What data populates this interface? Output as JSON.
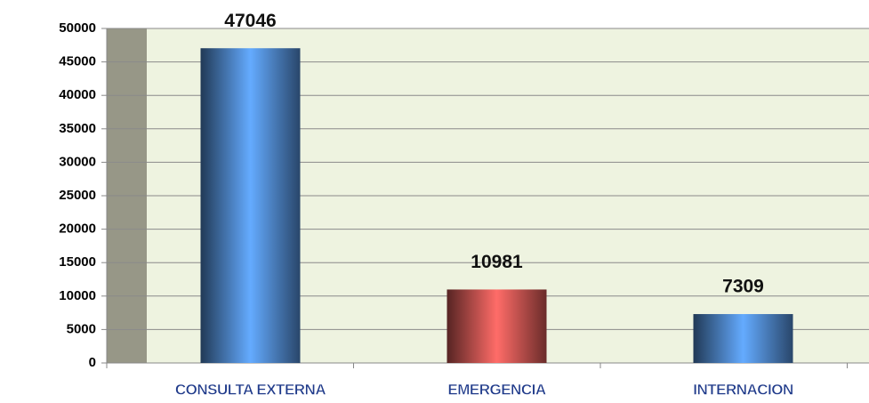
{
  "chart_data": {
    "type": "bar",
    "categories": [
      "CONSULTA EXTERNA",
      "EMERGENCIA",
      "INTERNACION"
    ],
    "values": [
      47046,
      10981,
      7309
    ],
    "colors": [
      "#4a7fc0",
      "#c0504d",
      "#4a7fc0"
    ],
    "ylim": [
      0,
      50000
    ],
    "yticks": [
      0,
      5000,
      10000,
      15000,
      20000,
      25000,
      30000,
      35000,
      40000,
      45000,
      50000
    ],
    "grid": true
  }
}
